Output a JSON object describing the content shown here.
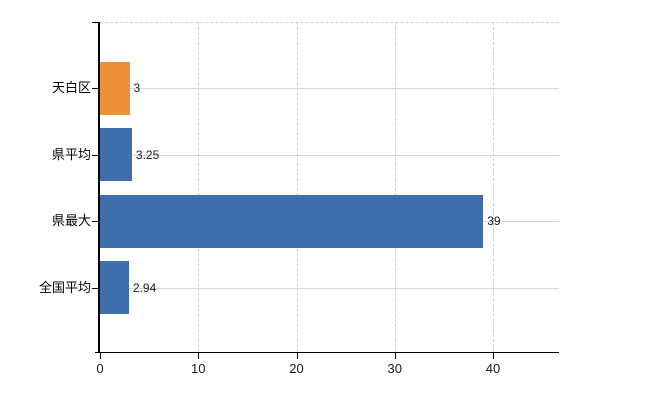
{
  "chart_data": {
    "type": "bar",
    "orientation": "horizontal",
    "title": "",
    "xlabel": "",
    "ylabel": "",
    "categories": [
      "天白区",
      "県平均",
      "県最大",
      "全国平均"
    ],
    "values": [
      3,
      3.25,
      39,
      2.94
    ],
    "value_labels": [
      "3",
      "3.25",
      "39",
      "2.94"
    ],
    "bar_colors": [
      "#ee9139",
      "#3e6eae",
      "#3e6eae",
      "#3e6eae"
    ],
    "x_ticks": [
      0,
      10,
      20,
      30,
      40
    ],
    "x_tick_labels": [
      "0",
      "10",
      "20",
      "30",
      "40"
    ],
    "xlim": [
      0,
      46.7
    ],
    "grid": true,
    "legend": "none"
  },
  "colors": {
    "background": "#ffffff",
    "axis": "#000000",
    "gridline_h": "#d4d8d4",
    "gridline_v": "#d3cdd3",
    "bar_blue": "#3e6eae",
    "bar_orange": "#ee9139",
    "category_label": "#000000",
    "value_label": "#1a1a1a",
    "tick_label": "#1a1a1a"
  }
}
